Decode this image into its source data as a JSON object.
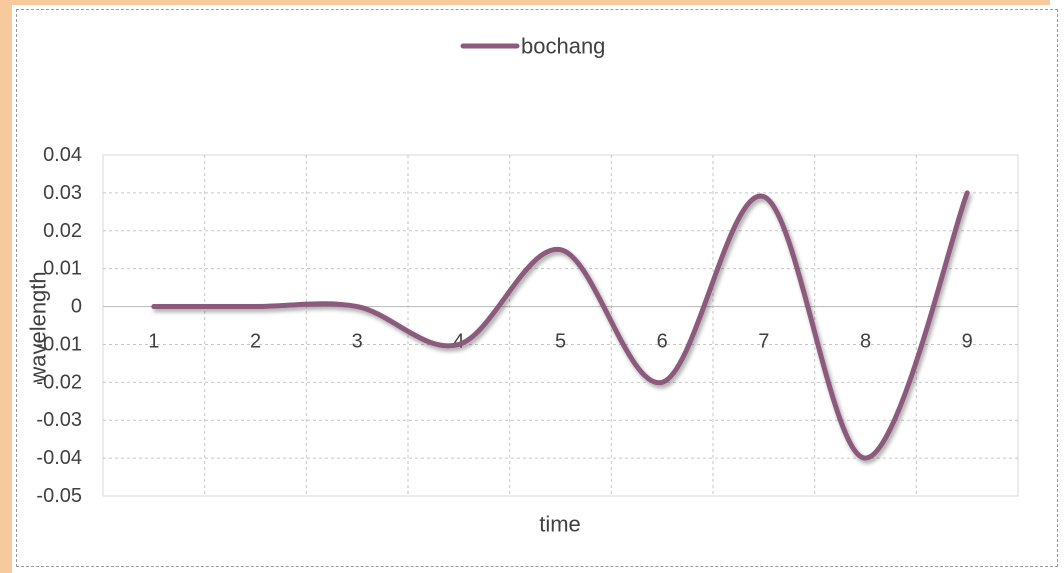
{
  "chart_data": {
    "type": "line",
    "smooth": true,
    "categories": [
      "1",
      "2",
      "3",
      "4",
      "5",
      "6",
      "7",
      "8",
      "9"
    ],
    "series": [
      {
        "name": "bochang",
        "values": [
          0,
          0,
          0,
          -0.01,
          0.015,
          -0.02,
          0.029,
          -0.04,
          0.03
        ],
        "color": "#8b5a7c"
      }
    ],
    "xlabel": "time",
    "ylabel": "wavelength",
    "ylim": [
      -0.05,
      0.04
    ],
    "yticks": [
      0.04,
      0.03,
      0.02,
      0.01,
      0,
      -0.01,
      -0.02,
      -0.03,
      -0.04,
      -0.05
    ],
    "grid": true,
    "legend": "top"
  },
  "colors": {
    "frame_accent": "#f8c99c",
    "gridline": "#c6c6c6",
    "axis_line": "#bfbfbf",
    "text": "#404040"
  }
}
